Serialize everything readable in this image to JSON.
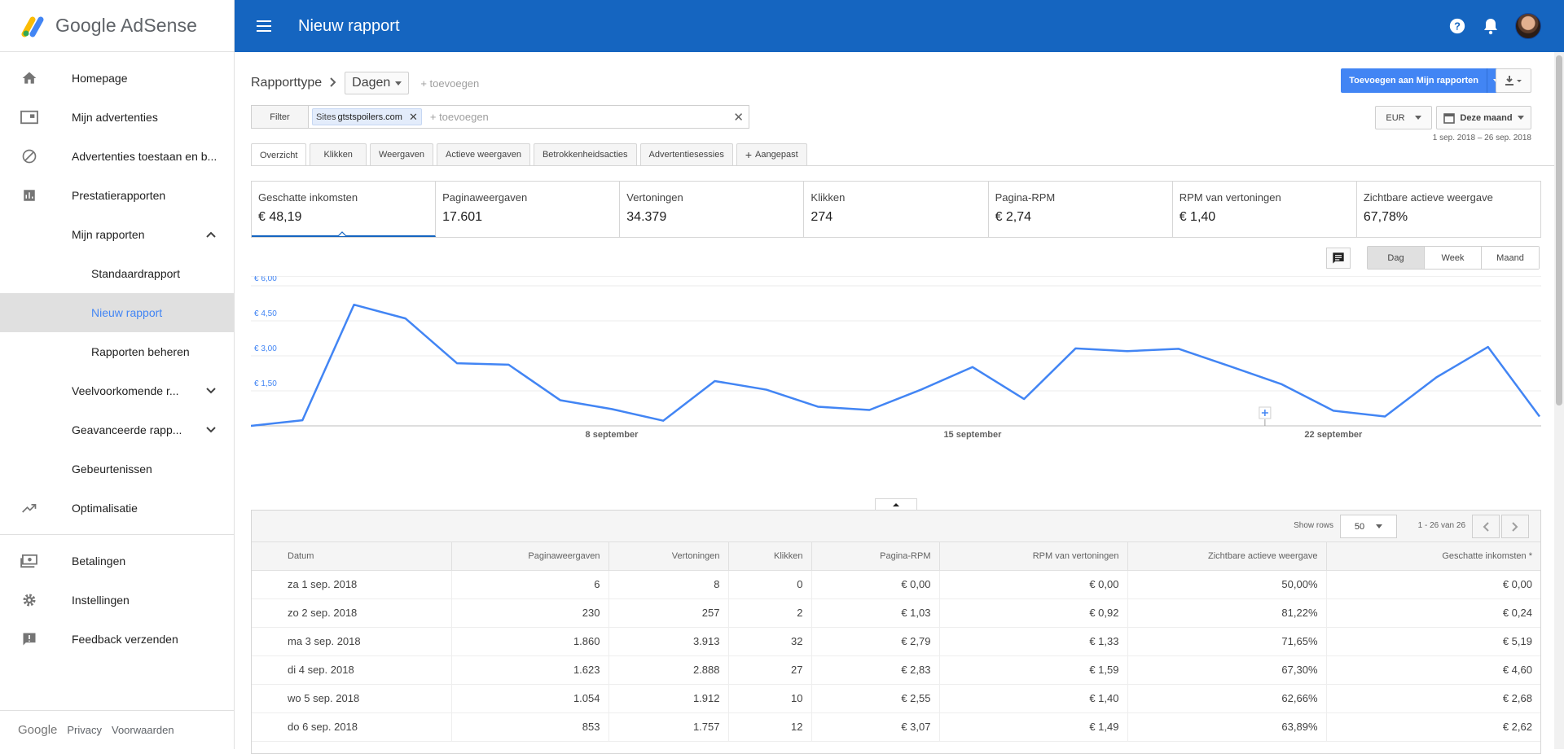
{
  "brand": {
    "name": "Google AdSense"
  },
  "sidebar": {
    "items": [
      {
        "label": "Homepage",
        "icon": "home-icon"
      },
      {
        "label": "Mijn advertenties",
        "icon": "ads-icon"
      },
      {
        "label": "Advertenties toestaan en b...",
        "icon": "block-icon"
      },
      {
        "label": "Prestatierapporten",
        "icon": "bar-chart-icon"
      },
      {
        "label": "Mijn rapporten",
        "expanded": true
      },
      {
        "label": "Standaardrapport"
      },
      {
        "label": "Nieuw rapport",
        "active": true
      },
      {
        "label": "Rapporten beheren"
      },
      {
        "label": "Veelvoorkomende r...",
        "expanded": false
      },
      {
        "label": "Geavanceerde rapp...",
        "expanded": false
      },
      {
        "label": "Gebeurtenissen"
      },
      {
        "label": "Optimalisatie",
        "icon": "trending-up-icon"
      },
      {
        "label": "Betalingen",
        "icon": "payments-icon"
      },
      {
        "label": "Instellingen",
        "icon": "gear-icon"
      },
      {
        "label": "Feedback verzenden",
        "icon": "feedback-icon"
      }
    ],
    "footer": {
      "google": "Google",
      "privacy": "Privacy",
      "terms": "Voorwaarden"
    }
  },
  "topbar": {
    "title": "Nieuw rapport"
  },
  "report": {
    "type_label": "Rapporttype",
    "type_value": "Dagen",
    "add_label": "+ toevoegen",
    "add_to_reports": "Toevoegen aan Mijn rapporten",
    "filter_label": "Filter",
    "filter_chip_key": "Sites",
    "filter_chip_value": "gtstspoilers.com",
    "filter_add": "+ toevoegen",
    "currency": "EUR",
    "period": "Deze maand",
    "date_range": "1 sep. 2018 – 26 sep. 2018"
  },
  "tabs": [
    "Overzicht",
    "Klikken",
    "Weergaven",
    "Actieve weergaven",
    "Betrokkenheidsacties",
    "Advertentiesessies",
    "Aangepast"
  ],
  "metrics": [
    {
      "label": "Geschatte inkomsten",
      "value": "€ 48,19"
    },
    {
      "label": "Paginaweergaven",
      "value": "17.601"
    },
    {
      "label": "Vertoningen",
      "value": "34.379"
    },
    {
      "label": "Klikken",
      "value": "274"
    },
    {
      "label": "Pagina-RPM",
      "value": "€ 2,74"
    },
    {
      "label": "RPM van vertoningen",
      "value": "€ 1,40"
    },
    {
      "label": "Zichtbare actieve weergave",
      "value": "67,78%"
    }
  ],
  "granularity": [
    "Dag",
    "Week",
    "Maand"
  ],
  "chart_data": {
    "type": "line",
    "x": [
      1,
      2,
      3,
      4,
      5,
      6,
      7,
      8,
      9,
      10,
      11,
      12,
      13,
      14,
      15,
      16,
      17,
      18,
      19,
      20,
      21,
      22,
      23,
      24,
      25,
      26
    ],
    "series": [
      {
        "values": [
          0.0,
          0.24,
          5.19,
          4.6,
          2.68,
          2.62,
          1.1,
          0.72,
          0.22,
          1.92,
          1.55,
          0.82,
          0.68,
          1.55,
          2.52,
          1.15,
          3.32,
          3.2,
          3.3,
          2.55,
          1.78,
          0.65,
          0.4,
          2.08,
          3.38,
          0.4
        ]
      }
    ],
    "color": "#4285f4",
    "y_ticks": [
      "€ 6,00",
      "€ 4,50",
      "€ 3,00",
      "€ 1,50"
    ],
    "ylim": [
      0,
      6
    ],
    "x_labels": [
      {
        "day": 8,
        "label": "8 september"
      },
      {
        "day": 15,
        "label": "15 september"
      },
      {
        "day": 22,
        "label": "22 september"
      }
    ]
  },
  "table": {
    "show_rows_label": "Show rows",
    "rows_value": "50",
    "pagination": "1 - 26 van 26",
    "headers": [
      "Datum",
      "Paginaweergaven",
      "Vertoningen",
      "Klikken",
      "Pagina-RPM",
      "RPM van vertoningen",
      "Zichtbare actieve weergave",
      "Geschatte inkomsten *"
    ],
    "rows": [
      [
        "za 1 sep. 2018",
        "6",
        "8",
        "0",
        "€ 0,00",
        "€ 0,00",
        "50,00%",
        "€ 0,00"
      ],
      [
        "zo 2 sep. 2018",
        "230",
        "257",
        "2",
        "€ 1,03",
        "€ 0,92",
        "81,22%",
        "€ 0,24"
      ],
      [
        "ma 3 sep. 2018",
        "1.860",
        "3.913",
        "32",
        "€ 2,79",
        "€ 1,33",
        "71,65%",
        "€ 5,19"
      ],
      [
        "di 4 sep. 2018",
        "1.623",
        "2.888",
        "27",
        "€ 2,83",
        "€ 1,59",
        "67,30%",
        "€ 4,60"
      ],
      [
        "wo 5 sep. 2018",
        "1.054",
        "1.912",
        "10",
        "€ 2,55",
        "€ 1,40",
        "62,66%",
        "€ 2,68"
      ],
      [
        "do 6 sep. 2018",
        "853",
        "1.757",
        "12",
        "€ 3,07",
        "€ 1,49",
        "63,89%",
        "€ 2,62"
      ]
    ]
  }
}
